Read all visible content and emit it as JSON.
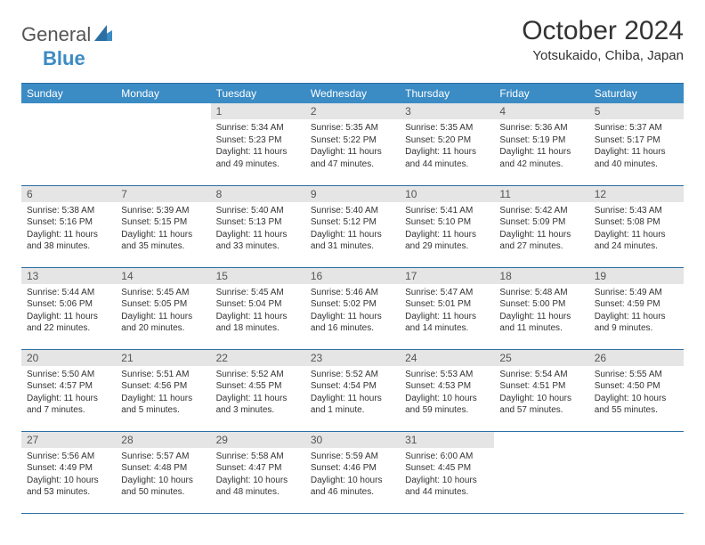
{
  "logo": {
    "text1": "General",
    "text2": "Blue"
  },
  "title": "October 2024",
  "location": "Yotsukaido, Chiba, Japan",
  "colors": {
    "header_bg": "#3b8bc4",
    "header_text": "#ffffff",
    "daynum_bg": "#e5e5e5",
    "border": "#2c6fa3"
  },
  "weekdays": [
    "Sunday",
    "Monday",
    "Tuesday",
    "Wednesday",
    "Thursday",
    "Friday",
    "Saturday"
  ],
  "weeks": [
    [
      null,
      null,
      {
        "n": "1",
        "sr": "Sunrise: 5:34 AM",
        "ss": "Sunset: 5:23 PM",
        "dl": "Daylight: 11 hours and 49 minutes."
      },
      {
        "n": "2",
        "sr": "Sunrise: 5:35 AM",
        "ss": "Sunset: 5:22 PM",
        "dl": "Daylight: 11 hours and 47 minutes."
      },
      {
        "n": "3",
        "sr": "Sunrise: 5:35 AM",
        "ss": "Sunset: 5:20 PM",
        "dl": "Daylight: 11 hours and 44 minutes."
      },
      {
        "n": "4",
        "sr": "Sunrise: 5:36 AM",
        "ss": "Sunset: 5:19 PM",
        "dl": "Daylight: 11 hours and 42 minutes."
      },
      {
        "n": "5",
        "sr": "Sunrise: 5:37 AM",
        "ss": "Sunset: 5:17 PM",
        "dl": "Daylight: 11 hours and 40 minutes."
      }
    ],
    [
      {
        "n": "6",
        "sr": "Sunrise: 5:38 AM",
        "ss": "Sunset: 5:16 PM",
        "dl": "Daylight: 11 hours and 38 minutes."
      },
      {
        "n": "7",
        "sr": "Sunrise: 5:39 AM",
        "ss": "Sunset: 5:15 PM",
        "dl": "Daylight: 11 hours and 35 minutes."
      },
      {
        "n": "8",
        "sr": "Sunrise: 5:40 AM",
        "ss": "Sunset: 5:13 PM",
        "dl": "Daylight: 11 hours and 33 minutes."
      },
      {
        "n": "9",
        "sr": "Sunrise: 5:40 AM",
        "ss": "Sunset: 5:12 PM",
        "dl": "Daylight: 11 hours and 31 minutes."
      },
      {
        "n": "10",
        "sr": "Sunrise: 5:41 AM",
        "ss": "Sunset: 5:10 PM",
        "dl": "Daylight: 11 hours and 29 minutes."
      },
      {
        "n": "11",
        "sr": "Sunrise: 5:42 AM",
        "ss": "Sunset: 5:09 PM",
        "dl": "Daylight: 11 hours and 27 minutes."
      },
      {
        "n": "12",
        "sr": "Sunrise: 5:43 AM",
        "ss": "Sunset: 5:08 PM",
        "dl": "Daylight: 11 hours and 24 minutes."
      }
    ],
    [
      {
        "n": "13",
        "sr": "Sunrise: 5:44 AM",
        "ss": "Sunset: 5:06 PM",
        "dl": "Daylight: 11 hours and 22 minutes."
      },
      {
        "n": "14",
        "sr": "Sunrise: 5:45 AM",
        "ss": "Sunset: 5:05 PM",
        "dl": "Daylight: 11 hours and 20 minutes."
      },
      {
        "n": "15",
        "sr": "Sunrise: 5:45 AM",
        "ss": "Sunset: 5:04 PM",
        "dl": "Daylight: 11 hours and 18 minutes."
      },
      {
        "n": "16",
        "sr": "Sunrise: 5:46 AM",
        "ss": "Sunset: 5:02 PM",
        "dl": "Daylight: 11 hours and 16 minutes."
      },
      {
        "n": "17",
        "sr": "Sunrise: 5:47 AM",
        "ss": "Sunset: 5:01 PM",
        "dl": "Daylight: 11 hours and 14 minutes."
      },
      {
        "n": "18",
        "sr": "Sunrise: 5:48 AM",
        "ss": "Sunset: 5:00 PM",
        "dl": "Daylight: 11 hours and 11 minutes."
      },
      {
        "n": "19",
        "sr": "Sunrise: 5:49 AM",
        "ss": "Sunset: 4:59 PM",
        "dl": "Daylight: 11 hours and 9 minutes."
      }
    ],
    [
      {
        "n": "20",
        "sr": "Sunrise: 5:50 AM",
        "ss": "Sunset: 4:57 PM",
        "dl": "Daylight: 11 hours and 7 minutes."
      },
      {
        "n": "21",
        "sr": "Sunrise: 5:51 AM",
        "ss": "Sunset: 4:56 PM",
        "dl": "Daylight: 11 hours and 5 minutes."
      },
      {
        "n": "22",
        "sr": "Sunrise: 5:52 AM",
        "ss": "Sunset: 4:55 PM",
        "dl": "Daylight: 11 hours and 3 minutes."
      },
      {
        "n": "23",
        "sr": "Sunrise: 5:52 AM",
        "ss": "Sunset: 4:54 PM",
        "dl": "Daylight: 11 hours and 1 minute."
      },
      {
        "n": "24",
        "sr": "Sunrise: 5:53 AM",
        "ss": "Sunset: 4:53 PM",
        "dl": "Daylight: 10 hours and 59 minutes."
      },
      {
        "n": "25",
        "sr": "Sunrise: 5:54 AM",
        "ss": "Sunset: 4:51 PM",
        "dl": "Daylight: 10 hours and 57 minutes."
      },
      {
        "n": "26",
        "sr": "Sunrise: 5:55 AM",
        "ss": "Sunset: 4:50 PM",
        "dl": "Daylight: 10 hours and 55 minutes."
      }
    ],
    [
      {
        "n": "27",
        "sr": "Sunrise: 5:56 AM",
        "ss": "Sunset: 4:49 PM",
        "dl": "Daylight: 10 hours and 53 minutes."
      },
      {
        "n": "28",
        "sr": "Sunrise: 5:57 AM",
        "ss": "Sunset: 4:48 PM",
        "dl": "Daylight: 10 hours and 50 minutes."
      },
      {
        "n": "29",
        "sr": "Sunrise: 5:58 AM",
        "ss": "Sunset: 4:47 PM",
        "dl": "Daylight: 10 hours and 48 minutes."
      },
      {
        "n": "30",
        "sr": "Sunrise: 5:59 AM",
        "ss": "Sunset: 4:46 PM",
        "dl": "Daylight: 10 hours and 46 minutes."
      },
      {
        "n": "31",
        "sr": "Sunrise: 6:00 AM",
        "ss": "Sunset: 4:45 PM",
        "dl": "Daylight: 10 hours and 44 minutes."
      },
      null,
      null
    ]
  ]
}
